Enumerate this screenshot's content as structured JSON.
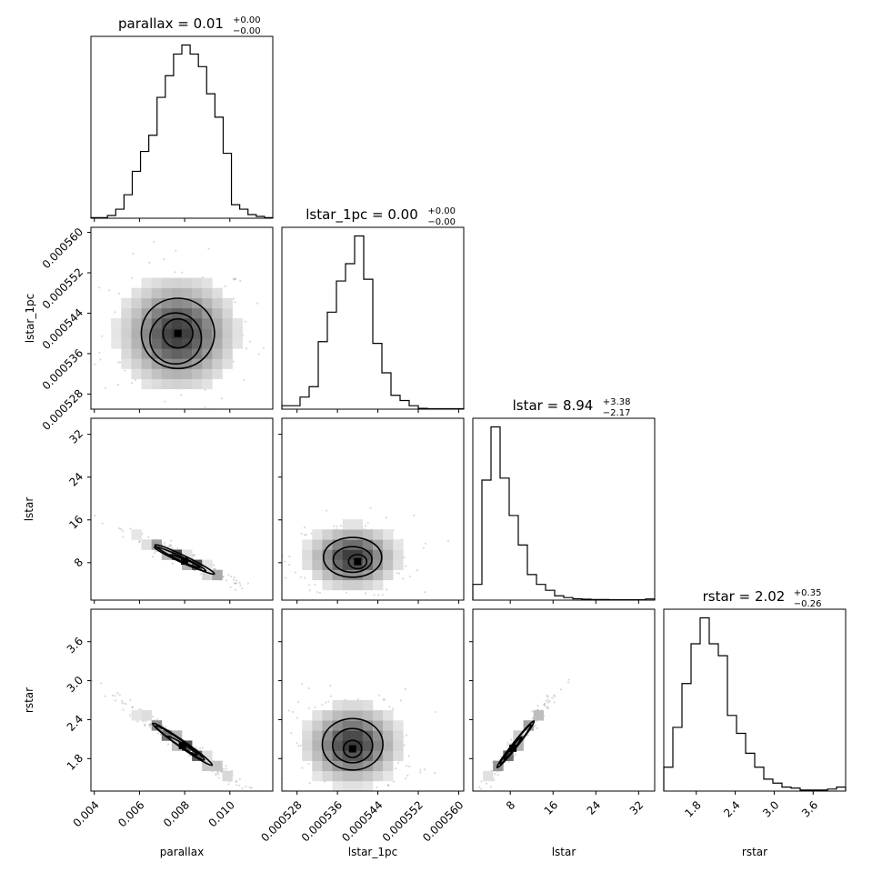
{
  "chart_data": {
    "type": "corner",
    "parameters": [
      {
        "name": "parallax",
        "xlabel": "parallax",
        "ylabel": "",
        "title": {
          "main": "parallax = 0.01",
          "sup": "+0.00",
          "sub": "−0.00"
        },
        "range": [
          0.00385,
          0.0119
        ],
        "ticks": [
          0.004,
          0.006,
          0.008,
          0.01
        ],
        "tick_labels": [
          "0.004",
          "0.006",
          "0.008",
          "0.010"
        ],
        "hist_edges": [
          0.00385,
          0.0119
        ],
        "hist_counts": [
          0.003,
          0.003,
          0.015,
          0.05,
          0.13,
          0.26,
          0.37,
          0.46,
          0.67,
          0.79,
          0.91,
          0.96,
          0.91,
          0.84,
          0.69,
          0.56,
          0.36,
          0.075,
          0.05,
          0.02,
          0.01,
          0.003
        ]
      },
      {
        "name": "lstar_1pc",
        "xlabel": "lstar_1pc",
        "ylabel": "lstar_1pc",
        "title": {
          "main": "lstar_1pc = 0.00",
          "sup": "+0.00",
          "sub": "−0.00"
        },
        "range": [
          0.000525,
          0.000561
        ],
        "ticks": [
          0.000528,
          0.000536,
          0.000544,
          0.000552,
          0.00056
        ],
        "tick_labels": [
          "0.000528",
          "0.000536",
          "0.000544",
          "0.000552",
          "0.000560"
        ],
        "hist_edges": [
          0.000525,
          0.000561
        ],
        "hist_counts": [
          0.02,
          0.02,
          0.07,
          0.13,
          0.39,
          0.56,
          0.74,
          0.84,
          1.0,
          0.75,
          0.38,
          0.21,
          0.08,
          0.05,
          0.02,
          0.005,
          0.003,
          0.003,
          0.003,
          0.003
        ]
      },
      {
        "name": "lstar",
        "xlabel": "lstar",
        "ylabel": "lstar",
        "title": {
          "main": "lstar = 8.94",
          "sup": "+3.38",
          "sub": "−2.17"
        },
        "range": [
          1.0,
          35.0
        ],
        "ticks": [
          8,
          16,
          24,
          32
        ],
        "tick_labels": [
          "8",
          "16",
          "24",
          "32"
        ],
        "hist_edges": [
          1.0,
          35.0
        ],
        "hist_counts": [
          0.08,
          0.61,
          0.88,
          0.62,
          0.43,
          0.28,
          0.13,
          0.08,
          0.05,
          0.022,
          0.013,
          0.007,
          0.005,
          0.003,
          0.003,
          0.002,
          0.002,
          0.002,
          0.002,
          0.006
        ]
      },
      {
        "name": "rstar",
        "xlabel": "rstar",
        "ylabel": "rstar",
        "title": {
          "main": "rstar = 2.02",
          "sup": "+0.35",
          "sub": "−0.26"
        },
        "range": [
          1.3,
          4.1
        ],
        "ticks": [
          1.8,
          2.4,
          3.0,
          3.6
        ],
        "tick_labels": [
          "1.8",
          "2.4",
          "3.0",
          "3.6"
        ],
        "hist_edges": [
          1.3,
          4.1
        ],
        "hist_counts": [
          0.12,
          0.32,
          0.54,
          0.74,
          0.87,
          0.74,
          0.68,
          0.38,
          0.29,
          0.19,
          0.12,
          0.06,
          0.04,
          0.02,
          0.015,
          0.005,
          0.005,
          0.005,
          0.01,
          0.02
        ]
      }
    ],
    "pairs": [
      {
        "x": "parallax",
        "y": "lstar_1pc",
        "blobs": [
          {
            "cx": 0.0077,
            "cy": 0.00054,
            "sx": 0.00055,
            "sy": 2.4e-06,
            "rho": 0
          },
          {
            "cx": 0.0076,
            "cy": 0.000539,
            "sx": 0.00095,
            "sy": 4.2e-06,
            "rho": 0
          },
          {
            "cx": 0.0077,
            "cy": 0.00054,
            "sx": 0.00135,
            "sy": 5.8e-06,
            "rho": 0
          }
        ]
      },
      {
        "x": "parallax",
        "y": "lstar",
        "blobs": [
          {
            "cx": 0.008,
            "cy": 8.3,
            "sx": 0.00055,
            "sy": 1.0,
            "rho": -0.96
          },
          {
            "cx": 0.0078,
            "cy": 8.7,
            "sx": 0.00095,
            "sy": 1.9,
            "rho": -0.97
          },
          {
            "cx": 0.008,
            "cy": 8.6,
            "sx": 0.0011,
            "sy": 2.3,
            "rho": -0.97
          }
        ]
      },
      {
        "x": "lstar_1pc",
        "y": "lstar",
        "blobs": [
          {
            "cx": 0.00054,
            "cy": 8.2,
            "sx": 1.5e-06,
            "sy": 1.1,
            "rho": 0
          },
          {
            "cx": 0.000539,
            "cy": 8.6,
            "sx": 3.2e-06,
            "sy": 2.0,
            "rho": 0
          },
          {
            "cx": 0.000539,
            "cy": 9.0,
            "sx": 4.8e-06,
            "sy": 3.1,
            "rho": 0
          }
        ]
      },
      {
        "x": "parallax",
        "y": "rstar",
        "blobs": [
          {
            "cx": 0.0079,
            "cy": 2.0,
            "sx": 0.00055,
            "sy": 0.12,
            "rho": -0.97
          },
          {
            "cx": 0.0078,
            "cy": 2.04,
            "sx": 0.0009,
            "sy": 0.22,
            "rho": -0.98
          },
          {
            "cx": 0.0079,
            "cy": 2.02,
            "sx": 0.0011,
            "sy": 0.27,
            "rho": -0.98
          }
        ]
      },
      {
        "x": "lstar_1pc",
        "y": "rstar",
        "blobs": [
          {
            "cx": 0.000539,
            "cy": 1.95,
            "sx": 1.5e-06,
            "sy": 0.11,
            "rho": 0
          },
          {
            "cx": 0.000539,
            "cy": 2.0,
            "sx": 3.3e-06,
            "sy": 0.22,
            "rho": 0
          },
          {
            "cx": 0.000539,
            "cy": 2.02,
            "sx": 5e-06,
            "sy": 0.33,
            "rho": 0
          }
        ]
      },
      {
        "x": "lstar",
        "y": "rstar",
        "blobs": [
          {
            "cx": 8.5,
            "cy": 1.96,
            "sx": 1.4,
            "sy": 0.15,
            "rho": 0.985
          },
          {
            "cx": 9.0,
            "cy": 2.02,
            "sx": 2.4,
            "sy": 0.25,
            "rho": 0.985
          },
          {
            "cx": 9.0,
            "cy": 2.02,
            "sx": 2.9,
            "sy": 0.3,
            "rho": 0.985
          }
        ]
      }
    ],
    "grid": false,
    "legend": "none"
  }
}
